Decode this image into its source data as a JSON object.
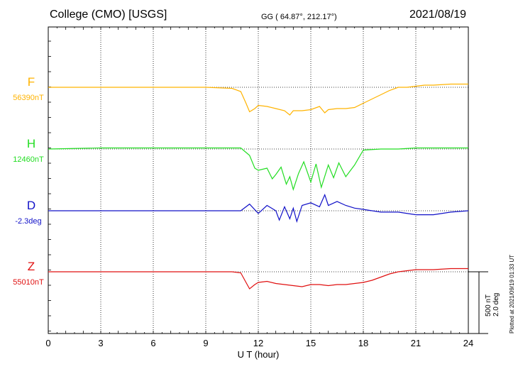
{
  "header": {
    "title": "College (CMO)  [USGS]",
    "coords": "GG ( 64.87°, 212.17°)",
    "date": "2021/08/19"
  },
  "side_note": "Plotted at 2021/09/19 01:33 UT",
  "colors": {
    "F": "#ffb300",
    "H": "#22dd22",
    "D": "#1010c8",
    "Z": "#e01010"
  },
  "chart_data": {
    "type": "line",
    "title": "College (CMO)  [USGS]",
    "xlabel": "U T (hour)",
    "ylabel": "",
    "xlim": [
      0,
      24
    ],
    "xticks": [
      "0",
      "3",
      "6",
      "9",
      "12",
      "15",
      "18",
      "21",
      "24"
    ],
    "grid": true,
    "scale_bar": {
      "label_1": "500 nT",
      "label_2": "2.0 deg"
    },
    "series": [
      {
        "name": "F",
        "baseline": "56390nT",
        "x": [
          0,
          3,
          6,
          9,
          10.5,
          11,
          11.3,
          11.5,
          11.8,
          12,
          12.5,
          13,
          13.5,
          13.8,
          14,
          14.5,
          15,
          15.5,
          15.8,
          16,
          16.5,
          17,
          17.5,
          18,
          18.5,
          19,
          19.5,
          20,
          20.5,
          21,
          21.5,
          22,
          23,
          24
        ],
        "y": [
          0,
          0,
          0,
          0,
          -10,
          -40,
          -150,
          -230,
          -200,
          -170,
          -180,
          -200,
          -220,
          -260,
          -220,
          -220,
          -210,
          -180,
          -240,
          -210,
          -200,
          -200,
          -190,
          -150,
          -110,
          -70,
          -30,
          0,
          0,
          10,
          20,
          20,
          30,
          30
        ]
      },
      {
        "name": "H",
        "baseline": "12460nT",
        "x": [
          0,
          3,
          6,
          9,
          10,
          11,
          11.5,
          11.8,
          12,
          12.5,
          12.8,
          13,
          13.3,
          13.6,
          13.8,
          14,
          14.3,
          14.6,
          15,
          15.3,
          15.6,
          16,
          16.3,
          16.6,
          17,
          17.5,
          18,
          19,
          20,
          21,
          22,
          23,
          24
        ],
        "y": [
          0,
          10,
          10,
          10,
          10,
          10,
          -60,
          -180,
          -200,
          -180,
          -280,
          -240,
          -170,
          -330,
          -260,
          -380,
          -230,
          -120,
          -310,
          -140,
          -360,
          -150,
          -270,
          -130,
          -260,
          -150,
          -10,
          0,
          0,
          10,
          10,
          10,
          10
        ]
      },
      {
        "name": "D",
        "baseline": "-2.3deg",
        "x": [
          0,
          3,
          6,
          9,
          10,
          11,
          11.5,
          12,
          12.5,
          13,
          13.2,
          13.5,
          13.8,
          14,
          14.2,
          14.5,
          15,
          15.5,
          15.8,
          16,
          16.5,
          17,
          17.5,
          18,
          19,
          20,
          21,
          22,
          23,
          24
        ],
        "y": [
          0,
          0,
          0,
          0,
          0,
          0,
          0.25,
          -0.1,
          0.2,
          0,
          -0.35,
          0.15,
          -0.3,
          0.1,
          -0.4,
          0.2,
          0.3,
          0.15,
          0.6,
          0.2,
          0.35,
          0.2,
          0.1,
          0.05,
          -0.05,
          -0.05,
          -0.15,
          -0.15,
          -0.05,
          0
        ]
      },
      {
        "name": "Z",
        "baseline": "55010nT",
        "x": [
          0,
          3,
          6,
          9,
          10.5,
          11,
          11.3,
          11.5,
          11.8,
          12,
          12.5,
          13,
          13.5,
          14,
          14.5,
          15,
          15.5,
          16,
          16.5,
          17,
          17.5,
          18,
          18.5,
          19,
          19.5,
          20,
          20.5,
          21,
          22,
          23,
          24
        ],
        "y": [
          0,
          0,
          0,
          0,
          0,
          -10,
          -100,
          -160,
          -120,
          -100,
          -90,
          -110,
          -120,
          -130,
          -140,
          -120,
          -120,
          -130,
          -120,
          -120,
          -110,
          -100,
          -80,
          -50,
          -20,
          0,
          10,
          20,
          20,
          30,
          30
        ]
      }
    ]
  }
}
